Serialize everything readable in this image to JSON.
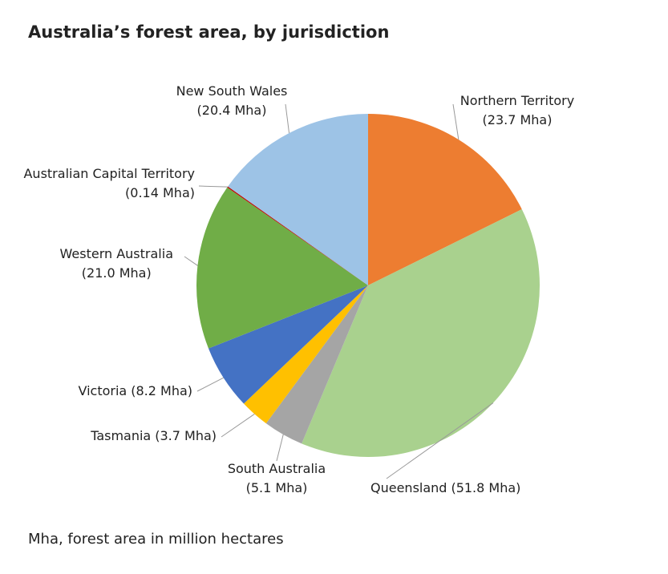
{
  "chart_data": {
    "type": "pie",
    "title": "Australia’s forest area, by jurisdiction",
    "note": "Mha, forest area in million hectares",
    "categories": [
      "Northern Territory",
      "Queensland",
      "South Australia",
      "Tasmania",
      "Victoria",
      "Western Australia",
      "Australian Capital Territory",
      "New South Wales"
    ],
    "values": [
      23.7,
      51.8,
      5.1,
      3.7,
      8.2,
      21.0,
      0.14,
      20.4
    ],
    "value_labels": [
      "(23.7 Mha)",
      "(51.8 Mha)",
      "(5.1 Mha)",
      "(3.7 Mha)",
      "(8.2 Mha)",
      "(21.0 Mha)",
      "(0.14 Mha)",
      "(20.4 Mha)"
    ],
    "colors": [
      "#ed7d31",
      "#a9d18e",
      "#a5a5a5",
      "#ffc000",
      "#4472c4",
      "#70ad47",
      "#c00000",
      "#9dc3e6"
    ]
  }
}
